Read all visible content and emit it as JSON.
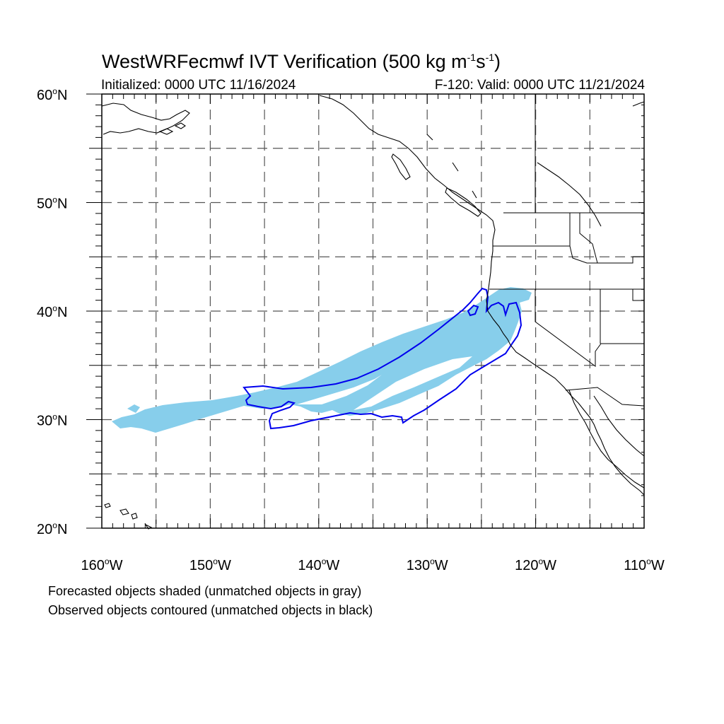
{
  "header": {
    "title_main": "WestWRFecmwf IVT Verification (500 kg m",
    "title_exp1": "-1",
    "title_mid": "s",
    "title_exp2": "-1",
    "title_end": ")",
    "initialized": "Initialized: 0000 UTC 11/16/2024",
    "valid": "F-120: Valid: 0000 UTC 11/21/2024"
  },
  "map": {
    "lon_range": [
      -160,
      -110
    ],
    "lat_range": [
      20,
      60
    ],
    "lat_labels": [
      {
        "lat": 60,
        "text": "60",
        "hemi": "N"
      },
      {
        "lat": 50,
        "text": "50",
        "hemi": "N"
      },
      {
        "lat": 40,
        "text": "40",
        "hemi": "N"
      },
      {
        "lat": 30,
        "text": "30",
        "hemi": "N"
      },
      {
        "lat": 20,
        "text": "20",
        "hemi": "N"
      }
    ],
    "lon_labels": [
      {
        "lon": -160,
        "text": "160",
        "hemi": "W"
      },
      {
        "lon": -150,
        "text": "150",
        "hemi": "W"
      },
      {
        "lon": -140,
        "text": "140",
        "hemi": "W"
      },
      {
        "lon": -130,
        "text": "130",
        "hemi": "W"
      },
      {
        "lon": -120,
        "text": "120",
        "hemi": "W"
      },
      {
        "lon": -110,
        "text": "110",
        "hemi": "W"
      }
    ],
    "grid_lons": [
      -155,
      -150,
      -145,
      -140,
      -135,
      -130,
      -125,
      -120,
      -115
    ],
    "grid_lats": [
      55,
      50,
      45,
      40,
      35,
      30,
      25
    ],
    "forecast_color": "#87ceeb",
    "observed_color": "#0000ee",
    "coast_color": "#000000",
    "grid_color": "#555555"
  },
  "footnotes": {
    "line1": "Forecasted objects shaded (unmatched objects in gray)",
    "line2": "Observed objects contoured (unmatched objects in black)"
  }
}
